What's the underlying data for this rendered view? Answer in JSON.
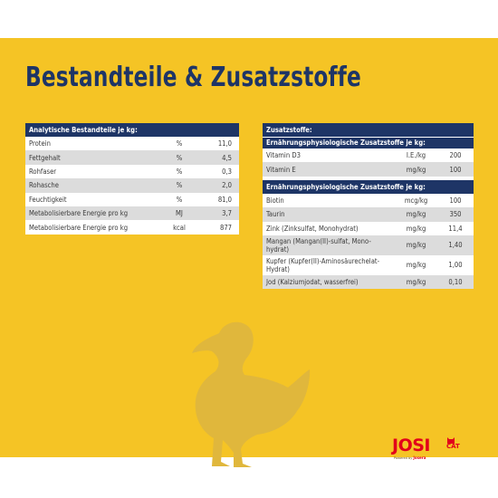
{
  "title": "Bestandteile & Zusatzstoffe",
  "analytic": {
    "header": "Analytische Bestandteile je kg:",
    "rows": [
      {
        "name": "Protein",
        "unit": "%",
        "value": "11,0"
      },
      {
        "name": "Fettgehalt",
        "unit": "%",
        "value": "4,5"
      },
      {
        "name": "Rohfaser",
        "unit": "%",
        "value": "0,3"
      },
      {
        "name": "Rohasche",
        "unit": "%",
        "value": "2,0"
      },
      {
        "name": "Feuchtigkeit",
        "unit": "%",
        "value": "81,0"
      },
      {
        "name": "Metabolisierbare Energie pro kg",
        "unit": "MJ",
        "value": "3,7"
      },
      {
        "name": "Metabolisierbare Energie pro kg",
        "unit": "kcal",
        "value": "877"
      }
    ]
  },
  "additives": {
    "header": "Zusatzstoffe:",
    "section1": {
      "header": "Ernährungsphysiologische Zusatzstoffe je kg:",
      "rows": [
        {
          "name": "Vitamin D3",
          "unit": "I.E./kg",
          "value": "200"
        },
        {
          "name": "Vitamin E",
          "unit": "mg/kg",
          "value": "100"
        }
      ]
    },
    "section2": {
      "header": "Ernährungsphysiologische Zusatzstoffe je kg:",
      "rows": [
        {
          "name": "Biotin",
          "unit": "mcg/kg",
          "value": "100"
        },
        {
          "name": "Taurin",
          "unit": "mg/kg",
          "value": "350"
        },
        {
          "name": "Zink (Zinksulfat, Monohydrat)",
          "unit": "mg/kg",
          "value": "11,4"
        },
        {
          "name": "Mangan (Mangan(II)-sulfat, Mono-hydrat)",
          "unit": "mg/kg",
          "value": "1,40"
        },
        {
          "name": "Kupfer (Kupfer(II)-Aminosäurechelat-Hydrat)",
          "unit": "mg/kg",
          "value": "1,00"
        },
        {
          "name": "Jod (Kalziumjodat, wasserfrei)",
          "unit": "mg/kg",
          "value": "0,10"
        }
      ]
    }
  },
  "logo": {
    "text": "JOSI",
    "suffix": "CAT",
    "sub_prefix": "Powered by",
    "sub_brand": "Josera"
  },
  "colors": {
    "background": "#f5c425",
    "navy": "#1e3566",
    "logo_red": "#e2001a",
    "duck": "#e0b73c"
  }
}
